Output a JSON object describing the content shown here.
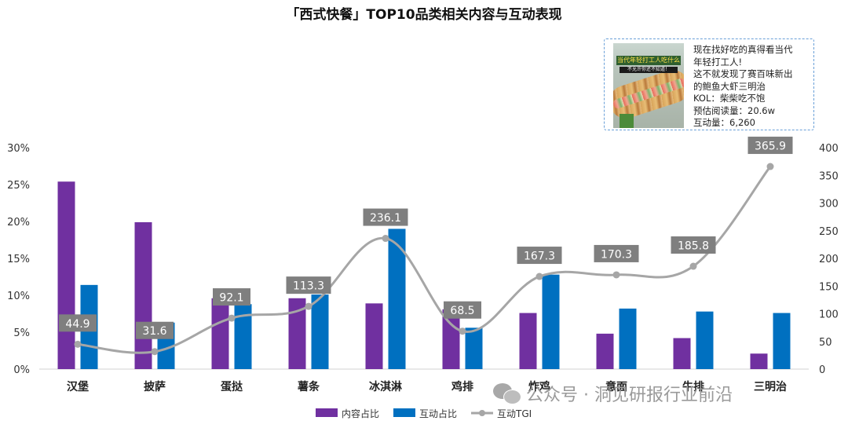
{
  "chart_data": {
    "type": "bar",
    "title": "「西式快餐」TOP10品类相关内容与互动表现",
    "categories": [
      "汉堡",
      "披萨",
      "蛋挞",
      "薯条",
      "冰淇淋",
      "鸡排",
      "炸鸡",
      "意面",
      "牛排",
      "三明治"
    ],
    "series": [
      {
        "name": "内容占比",
        "axis": "left",
        "kind": "bar",
        "color": "#7030a0",
        "values": [
          25.4,
          19.9,
          9.6,
          9.6,
          8.9,
          8.1,
          7.6,
          4.8,
          4.2,
          2.1
        ]
      },
      {
        "name": "互动占比",
        "axis": "left",
        "kind": "bar",
        "color": "#0070c0",
        "values": [
          11.4,
          6.3,
          8.8,
          10.1,
          19.0,
          5.6,
          12.8,
          8.2,
          7.8,
          7.6
        ]
      },
      {
        "name": "互动TGI",
        "axis": "right",
        "kind": "line",
        "color": "#a6a6a6",
        "values": [
          44.9,
          31.6,
          92.1,
          113.3,
          236.1,
          68.5,
          167.3,
          170.3,
          185.8,
          365.9
        ],
        "labels": [
          "44.9",
          "31.6",
          "92.1",
          "113.3",
          "236.1",
          "68.5",
          "167.3",
          "170.3",
          "185.8",
          "365.9"
        ]
      }
    ],
    "y_left": {
      "min": 0,
      "max": 30,
      "ticks": [
        0,
        5,
        10,
        15,
        20,
        25,
        30
      ],
      "tick_labels": [
        "0%",
        "5%",
        "10%",
        "15%",
        "20%",
        "25%",
        "30%"
      ]
    },
    "y_right": {
      "min": 0,
      "max": 400,
      "ticks": [
        0,
        50,
        100,
        150,
        200,
        250,
        300,
        350,
        400
      ],
      "tick_labels": [
        "0",
        "50",
        "100",
        "150",
        "200",
        "250",
        "300",
        "350",
        "400"
      ]
    },
    "grid": false,
    "legend_position": "bottom",
    "line_smooth": true
  },
  "kol_card": {
    "lines": [
      "现在找好吃的真得看当代",
      "年轻打工人!",
      "这不就发现了赛百味新出",
      "的鲍鱼大虾三明治",
      "KOL：柴柴吃不饱",
      "预估阅读量：20.6w",
      "互动量：6,260"
    ],
    "image_caption": "当代年轻打工人吃什么",
    "image_caption2": "不允许你还不知道！"
  },
  "watermark": "公众号 · 洞见研报行业前沿"
}
